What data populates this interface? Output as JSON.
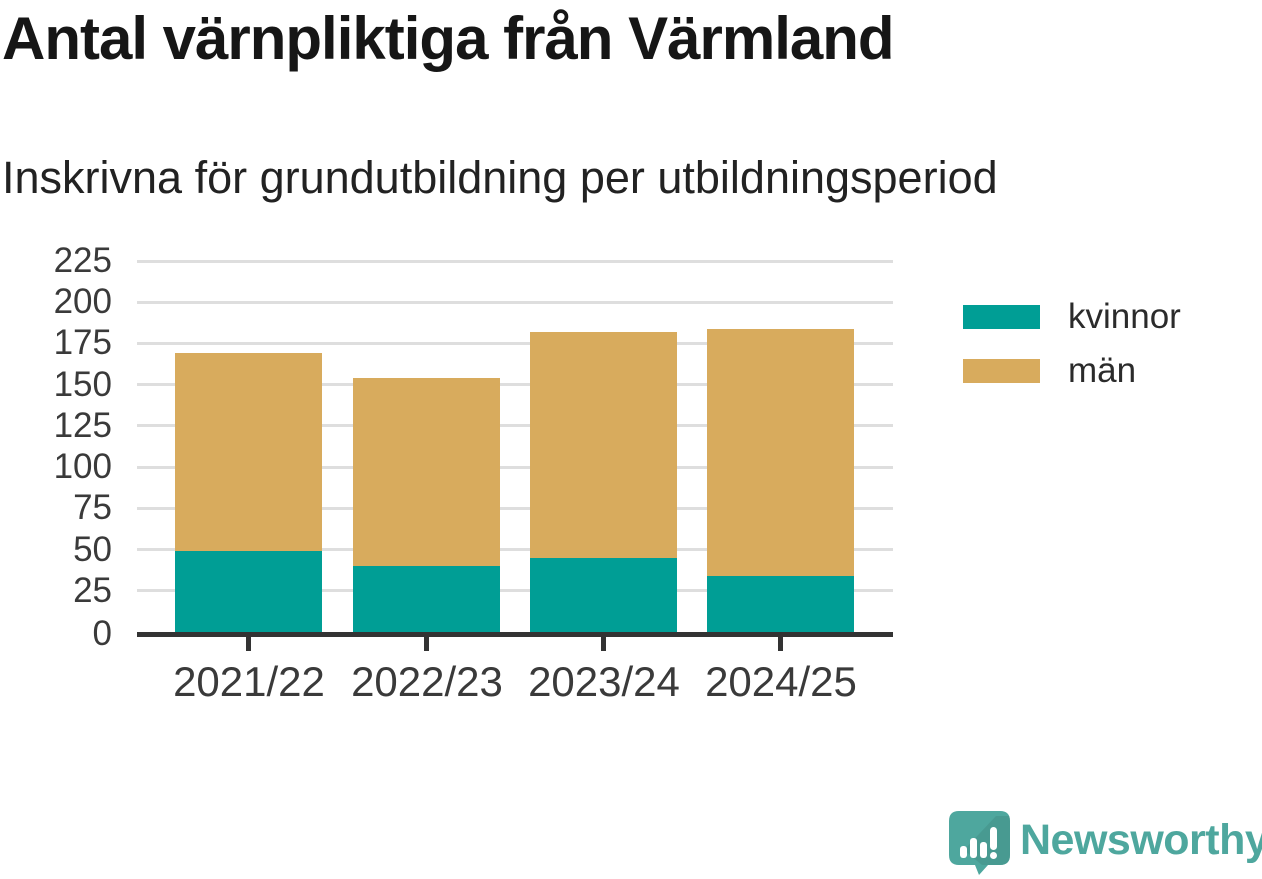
{
  "title": "Antal värnpliktiga från Värmland",
  "subtitle": "Inskrivna för grundutbildning per utbildningsperiod",
  "chart_data": {
    "type": "bar",
    "stacked": true,
    "title": "Antal värnpliktiga från Värmland",
    "subtitle": "Inskrivna för grundutbildning per utbildningsperiod",
    "categories": [
      "2021/22",
      "2022/23",
      "2023/24",
      "2024/25"
    ],
    "series": [
      {
        "name": "kvinnor",
        "color": "#009E95",
        "values": [
          49,
          40,
          45,
          34
        ]
      },
      {
        "name": "män",
        "color": "#D8AB5D",
        "values": [
          120,
          114,
          137,
          150
        ]
      }
    ],
    "stack_totals": [
      169,
      154,
      182,
      184
    ],
    "ylim": [
      0,
      225
    ],
    "yticks": [
      0,
      25,
      50,
      75,
      100,
      125,
      150,
      175,
      200,
      225
    ],
    "xlabel": "",
    "ylabel": "",
    "grid": true,
    "legend_position": "right"
  },
  "legend": {
    "items": [
      {
        "label": "kvinnor",
        "color": "#009E95"
      },
      {
        "label": "män",
        "color": "#D8AB5D"
      }
    ]
  },
  "colors": {
    "background": "#ffffff",
    "kvinnor": "#009E95",
    "man": "#D8AB5D",
    "gridline": "#dedede",
    "axis": "#333333",
    "tick_text": "#3a3a3a",
    "title_text": "#161616",
    "brand_teal": "#4EA79E"
  },
  "branding": {
    "logo_text": "Newsworthy",
    "logo_color": "#4EA79E",
    "logo_icon": "newsworthy-speech-bubble-barchart-icon"
  }
}
